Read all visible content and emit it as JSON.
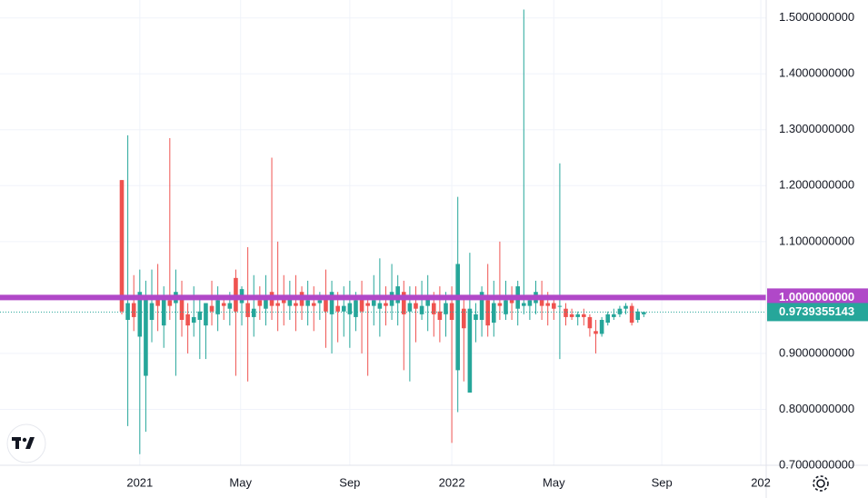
{
  "chart_data": {
    "type": "candlestick",
    "up_color": "#26a69a",
    "down_color": "#ef5350",
    "open": [
      1.21,
      0.96,
      0.99,
      0.93,
      0.86,
      0.96,
      1.0,
      0.95,
      0.995,
      0.99,
      1.0,
      0.97,
      0.955,
      0.96,
      0.95,
      0.985,
      0.97,
      0.99,
      0.98,
      1.035,
      0.99,
      0.99,
      0.965,
      0.995,
      0.98,
      1.01,
      0.99,
      1.0,
      0.985,
      0.99,
      1.01,
      0.985,
      0.99,
      0.99,
      1.0,
      0.97,
      0.985,
      0.975,
      0.97,
      0.965,
      1.0,
      0.99,
      0.985,
      0.98,
      0.99,
      0.985,
      0.99,
      1.01,
      0.975,
      0.99,
      0.97,
      0.985,
      0.99,
      0.975,
      0.97,
      0.99,
      0.87,
      0.98,
      0.83,
      0.96,
      0.96,
      0.995,
      0.955,
      0.99,
      0.97,
      1.0,
      0.98,
      0.985,
      0.985,
      0.99,
      1.0,
      0.99,
      0.99,
      0.985,
      0.98,
      0.97,
      0.965,
      0.97,
      0.965,
      0.94,
      0.935,
      0.955,
      0.965,
      0.97,
      0.98,
      0.985,
      0.96,
      0.97
    ],
    "high": [
      1.21,
      1.29,
      1.04,
      1.05,
      1.03,
      1.05,
      1.06,
      1.02,
      1.285,
      1.05,
      1.03,
      0.99,
      1.02,
      1.0,
      0.99,
      1.03,
      1.02,
      1.0,
      1.01,
      1.05,
      1.02,
      1.09,
      1.04,
      1.02,
      1.04,
      1.25,
      1.1,
      1.04,
      1.03,
      1.04,
      1.02,
      1.03,
      1.02,
      1.01,
      1.05,
      1.03,
      1.01,
      1.02,
      1.03,
      1.01,
      1.03,
      1.0,
      1.04,
      1.07,
      1.02,
      1.06,
      1.04,
      1.03,
      1.02,
      1.02,
      1.03,
      1.04,
      1.01,
      1.02,
      1.01,
      1.02,
      1.18,
      1.0,
      1.08,
      0.99,
      1.02,
      1.06,
      1.03,
      1.1,
      1.03,
      1.02,
      1.03,
      1.515,
      1.0,
      1.03,
      1.03,
      1.01,
      1.0,
      1.24,
      0.99,
      0.98,
      0.975,
      0.98,
      0.97,
      0.96,
      0.965,
      0.975,
      0.98,
      0.985,
      0.99,
      0.99,
      0.98,
      0.975
    ],
    "low": [
      0.97,
      0.77,
      0.94,
      0.72,
      0.76,
      0.92,
      0.94,
      0.91,
      0.96,
      0.86,
      0.93,
      0.9,
      0.93,
      0.89,
      0.89,
      0.95,
      0.94,
      0.96,
      0.95,
      0.86,
      0.95,
      0.85,
      0.93,
      0.96,
      0.95,
      0.96,
      0.94,
      0.95,
      0.96,
      0.94,
      0.96,
      0.95,
      0.94,
      0.96,
      0.91,
      0.9,
      0.92,
      0.93,
      0.91,
      0.94,
      0.9,
      0.86,
      0.95,
      0.93,
      0.95,
      0.96,
      0.95,
      0.87,
      0.85,
      0.92,
      0.96,
      0.94,
      0.93,
      0.92,
      0.93,
      0.74,
      0.795,
      0.85,
      0.83,
      0.92,
      0.93,
      0.93,
      0.93,
      0.96,
      0.96,
      0.96,
      0.95,
      0.97,
      0.96,
      0.97,
      0.96,
      0.95,
      0.96,
      0.89,
      0.95,
      0.96,
      0.95,
      0.95,
      0.93,
      0.9,
      0.93,
      0.95,
      0.96,
      0.965,
      0.97,
      0.95,
      0.955,
      0.965
    ],
    "close": [
      0.975,
      0.99,
      0.965,
      1.01,
      1.0,
      0.99,
      0.985,
      1.0,
      0.985,
      1.01,
      0.96,
      0.95,
      0.965,
      0.975,
      0.99,
      0.975,
      0.995,
      0.985,
      0.99,
      0.975,
      1.015,
      0.965,
      0.98,
      0.985,
      1.0,
      0.985,
      0.985,
      0.99,
      1.0,
      0.985,
      0.985,
      0.995,
      0.985,
      0.995,
      0.975,
      1.01,
      0.975,
      0.985,
      0.99,
      0.995,
      0.975,
      0.985,
      0.995,
      0.99,
      0.985,
      1.01,
      1.02,
      0.97,
      0.99,
      0.98,
      0.985,
      1.0,
      0.97,
      0.96,
      0.99,
      0.96,
      1.06,
      0.945,
      0.98,
      0.97,
      1.01,
      0.95,
      0.99,
      0.985,
      0.995,
      0.99,
      1.02,
      0.99,
      0.995,
      1.01,
      0.985,
      0.985,
      0.98,
      0.985,
      0.965,
      0.965,
      0.97,
      0.965,
      0.945,
      0.935,
      0.96,
      0.97,
      0.97,
      0.98,
      0.985,
      0.955,
      0.975,
      0.974
    ],
    "xlim": [
      -20.3,
      107.4
    ],
    "xticks": [
      {
        "value": 3,
        "label": "2021"
      },
      {
        "value": 19.8,
        "label": "May"
      },
      {
        "value": 38,
        "label": "Sep"
      },
      {
        "value": 55,
        "label": "2022"
      },
      {
        "value": 72,
        "label": "May"
      },
      {
        "value": 90,
        "label": "Sep"
      },
      {
        "value": 106.5,
        "label": "202"
      }
    ],
    "ylim": [
      0.7,
      1.532
    ],
    "yticks": [
      {
        "value": 0.7,
        "label": "0.7000000000"
      },
      {
        "value": 0.8,
        "label": "0.8000000000"
      },
      {
        "value": 0.9,
        "label": "0.9000000000"
      },
      {
        "value": 1.0,
        "label": "1.0000000000"
      },
      {
        "value": 1.1,
        "label": "1.1000000000"
      },
      {
        "value": 1.2,
        "label": "1.2000000000"
      },
      {
        "value": 1.3,
        "label": "1.3000000000"
      },
      {
        "value": 1.4,
        "label": "1.4000000000"
      },
      {
        "value": 1.5,
        "label": "1.5000000000"
      }
    ],
    "grid": true,
    "level_line": {
      "value": 1.0,
      "label": "1.0000000000",
      "color": "#b048c8"
    },
    "last_price": {
      "value": 0.9739355143,
      "label": "0.9739355143",
      "color": "#26a69a"
    }
  }
}
